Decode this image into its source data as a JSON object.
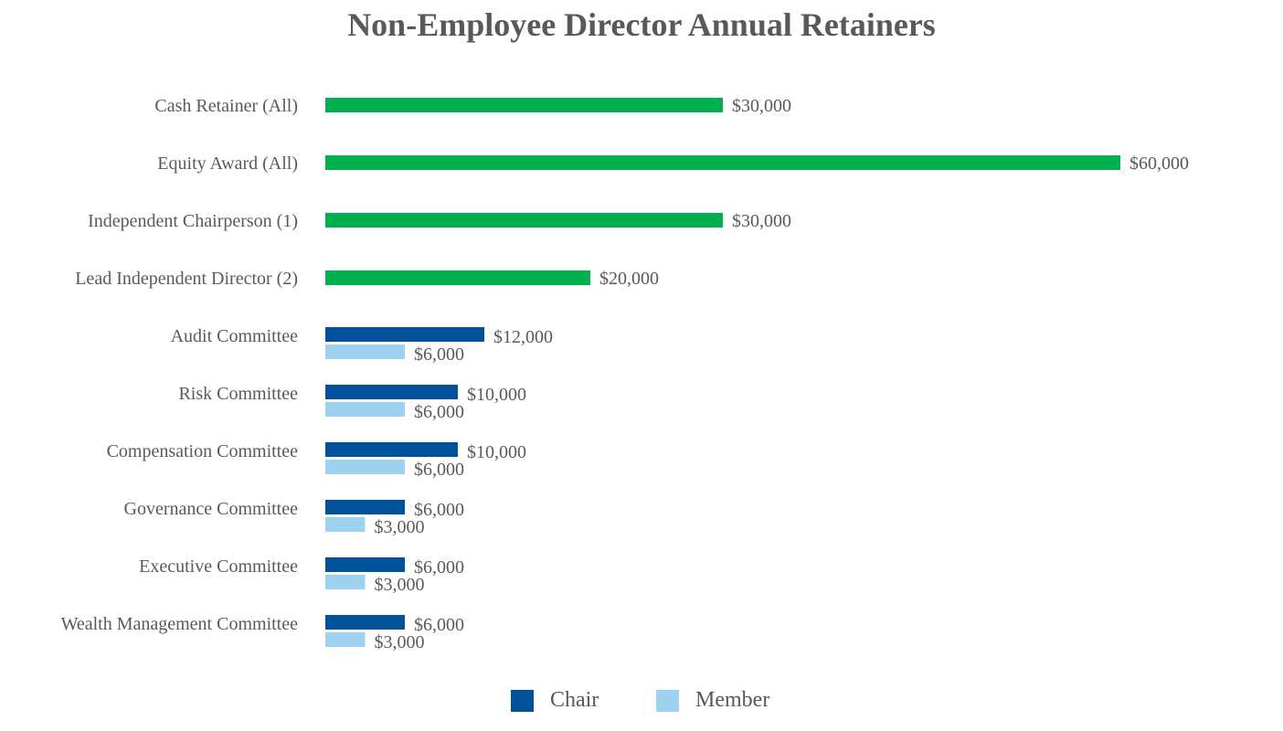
{
  "chart_data": {
    "type": "bar",
    "orientation": "horizontal",
    "title": "Non-Employee Director Annual Retainers",
    "categories": [
      "Cash Retainer (All)",
      "Equity Award (All)",
      "Independent Chairperson (1)",
      "Lead Independent Director (2)",
      "Audit Committee",
      "Risk Committee",
      "Compensation Committee",
      "Governance Committee",
      "Executive Committee",
      "Wealth Management Committee"
    ],
    "series": [
      {
        "name": "",
        "color": "#00B050",
        "values": [
          30000,
          60000,
          30000,
          20000,
          null,
          null,
          null,
          null,
          null,
          null
        ],
        "labels": [
          "$30,000",
          "$60,000",
          "$30,000",
          "$20,000",
          null,
          null,
          null,
          null,
          null,
          null
        ]
      },
      {
        "name": "Chair",
        "color": "#00539B",
        "values": [
          null,
          null,
          null,
          null,
          12000,
          10000,
          10000,
          6000,
          6000,
          6000
        ],
        "labels": [
          null,
          null,
          null,
          null,
          "$12,000",
          "$10,000",
          "$10,000",
          "$6,000",
          "$6,000",
          "$6,000"
        ]
      },
      {
        "name": "Member",
        "color": "#9DD3F1",
        "values": [
          null,
          null,
          null,
          null,
          6000,
          6000,
          6000,
          3000,
          3000,
          3000
        ],
        "labels": [
          null,
          null,
          null,
          null,
          "$6,000",
          "$6,000",
          "$6,000",
          "$3,000",
          "$3,000",
          "$3,000"
        ]
      }
    ],
    "xlim": [
      0,
      60000
    ],
    "grid": false,
    "legend": {
      "placement": "bottom",
      "entries": [
        "Chair",
        "Member"
      ]
    }
  }
}
